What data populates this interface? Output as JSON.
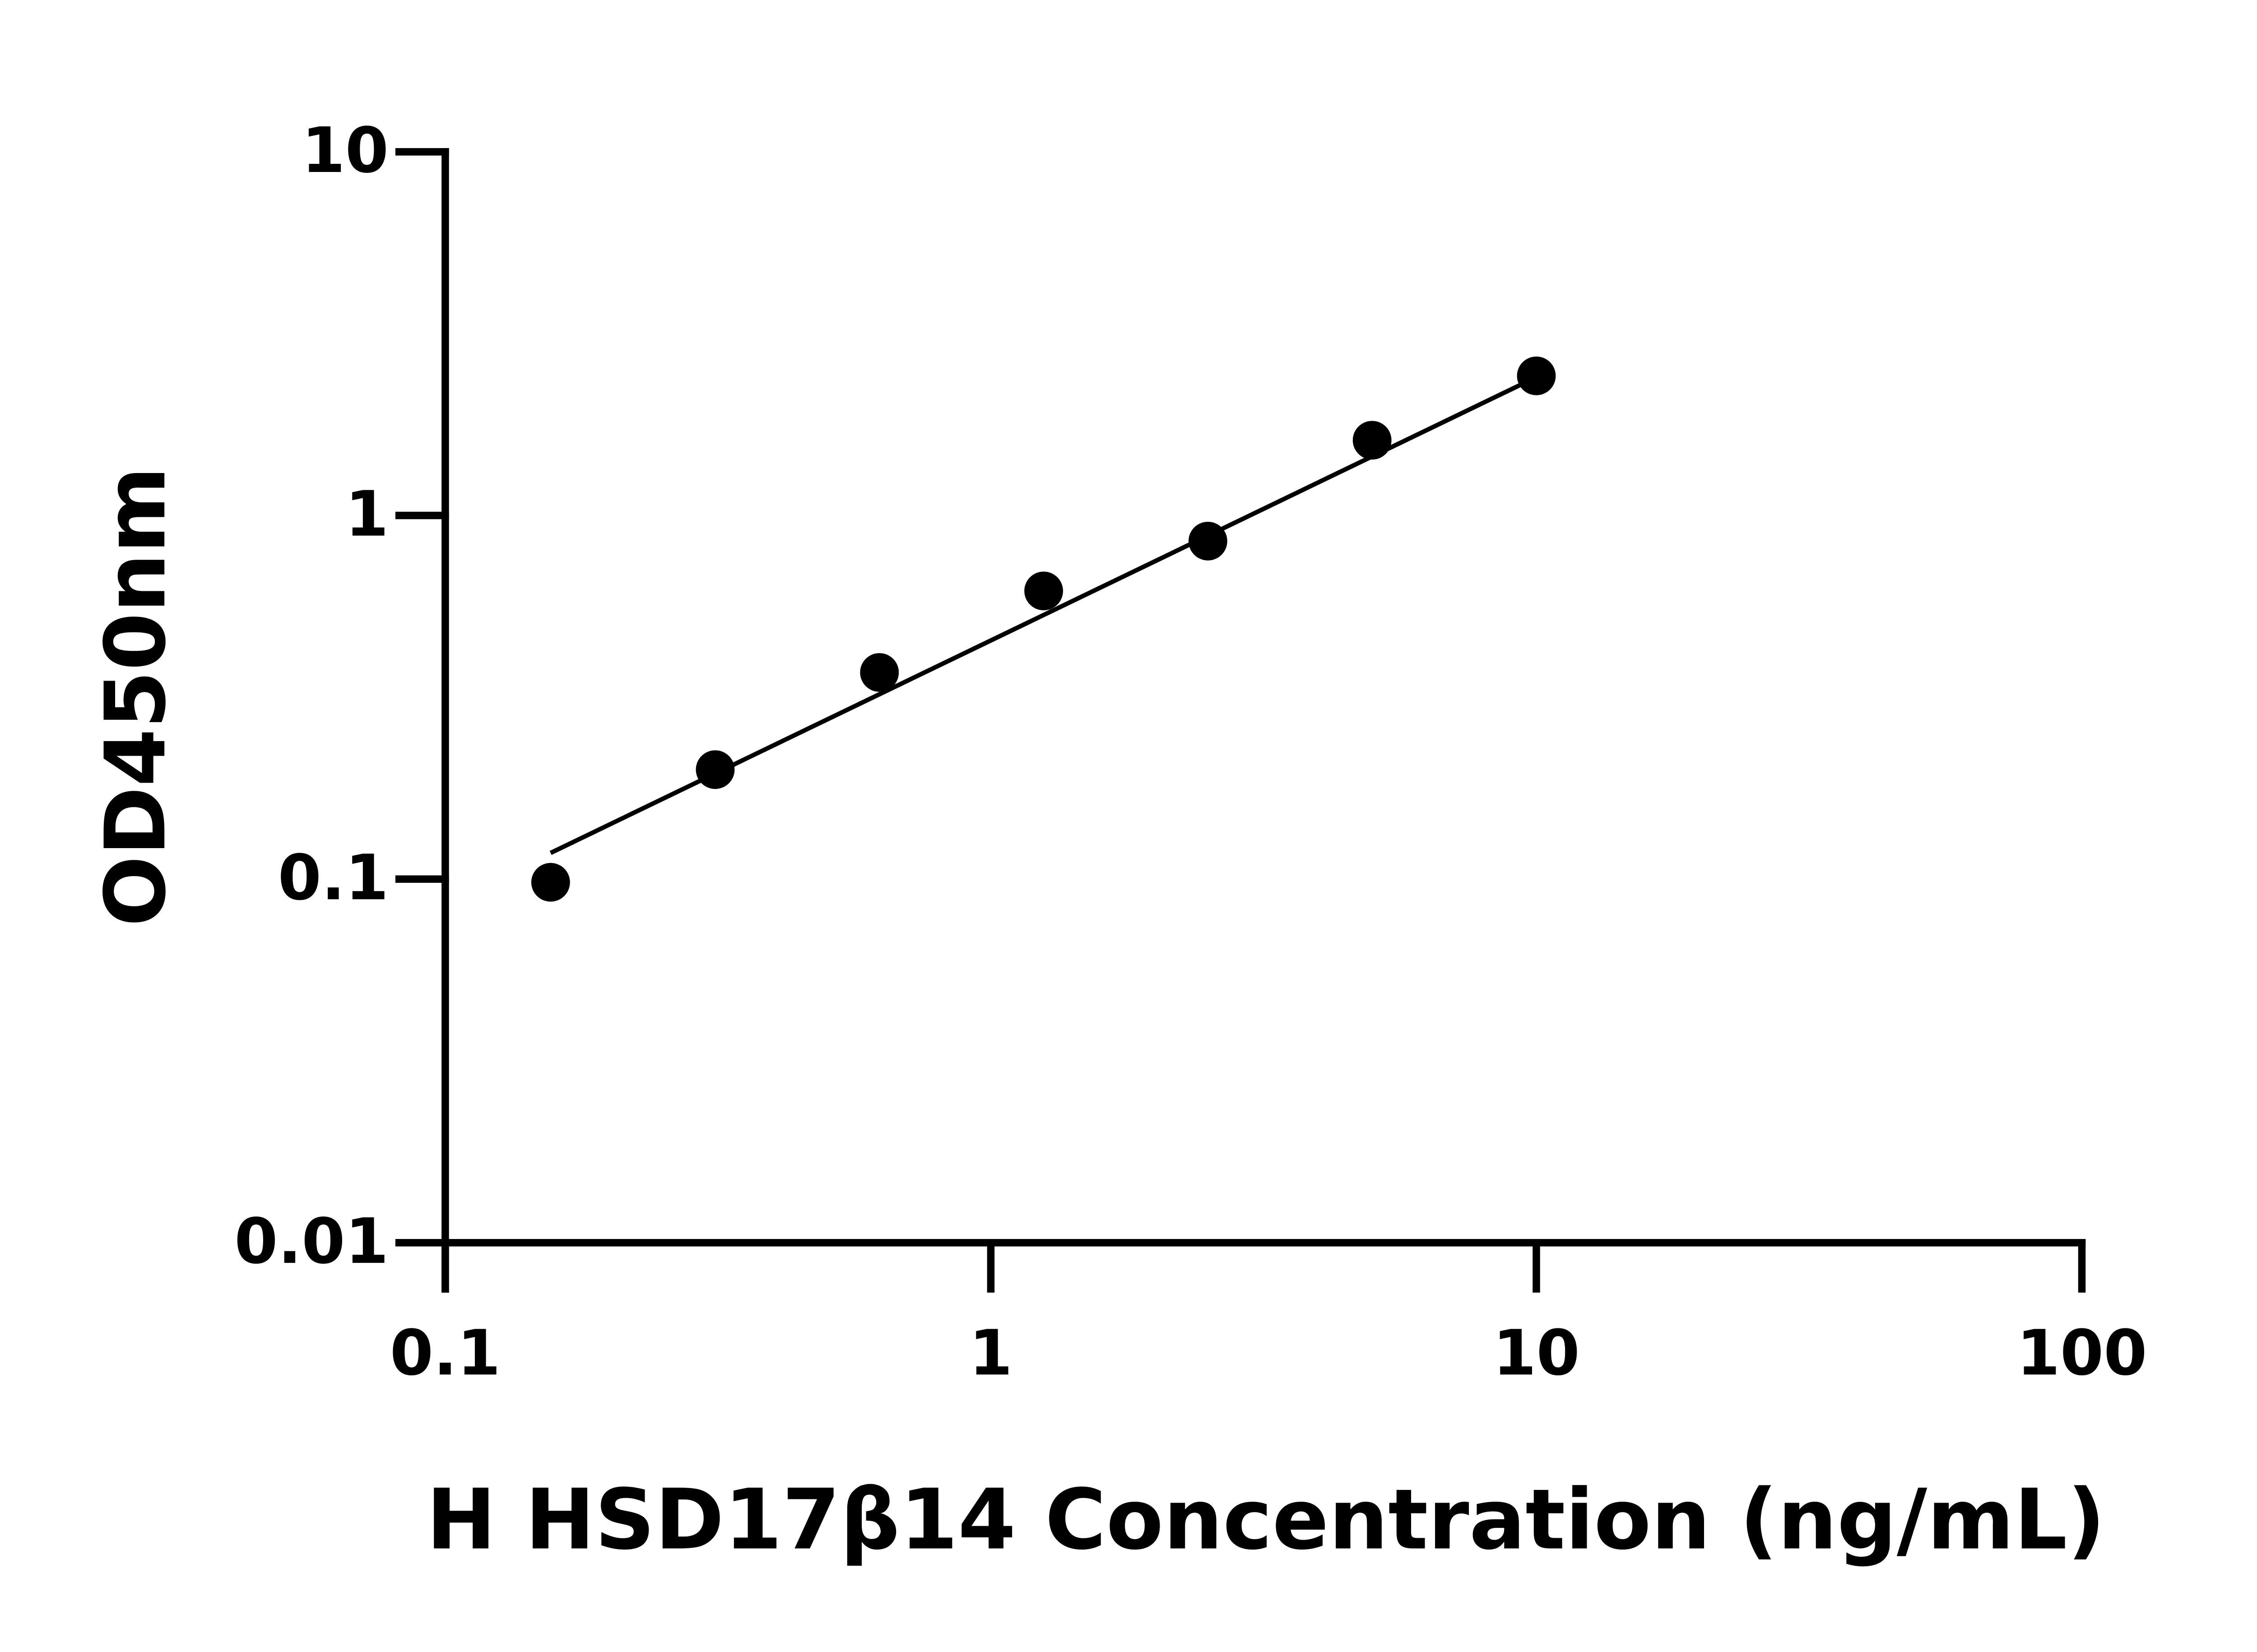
{
  "chart_data": {
    "type": "scatter",
    "x_label": "H HSD17β14 Concentration (ng/mL)",
    "y_label": "OD450nm",
    "x": [
      0.156,
      0.3125,
      0.625,
      1.25,
      2.5,
      5,
      10
    ],
    "series": [
      {
        "color": "#000000",
        "values": [
          0.098,
          0.2,
          0.37,
          0.62,
          0.85,
          1.61,
          2.42
        ]
      }
    ],
    "fit_line": {
      "x": [
        0.156,
        10
      ],
      "values": [
        0.118,
        2.4
      ],
      "color": "#000000"
    },
    "x_scale": "log",
    "y_scale": "log",
    "xlim": [
      0.1,
      100
    ],
    "ylim": [
      0.01,
      10
    ],
    "xticks": [
      0.1,
      1,
      10,
      100
    ],
    "yticks": [
      0.01,
      0.1,
      1,
      10
    ]
  }
}
